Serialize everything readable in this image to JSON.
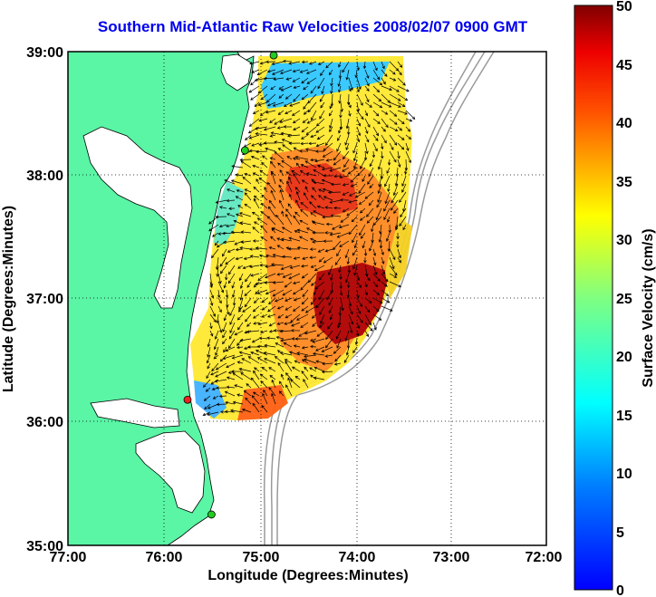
{
  "title": "Southern Mid-Atlantic Raw Velocities 2008/02/07 0900 GMT",
  "x_axis": {
    "label": "Longitude (Degrees:Minutes)",
    "ticks": [
      "77:00",
      "76:00",
      "75:00",
      "74:00",
      "73:00",
      "72:00"
    ]
  },
  "y_axis": {
    "label": "Latitude (Degrees:Minutes)",
    "ticks": [
      "39:00",
      "38:00",
      "37:00",
      "36:00",
      "35:00"
    ]
  },
  "colorbar": {
    "label": "Surface Velocity (cm/s)",
    "ticks": [
      "0",
      "5",
      "10",
      "15",
      "20",
      "25",
      "30",
      "35",
      "40",
      "45",
      "50"
    ],
    "min": 0,
    "max": 50,
    "colormap": "jet"
  },
  "map": {
    "lon_range": [
      -77,
      -72
    ],
    "lat_range": [
      35,
      39
    ],
    "land_color": "#5af5a5",
    "bathymetry_color": "#9a9a9a",
    "grid": "dotted",
    "stations": [
      {
        "lon": -74.85,
        "lat": 38.97,
        "color": "#22cc22"
      },
      {
        "lon": -75.15,
        "lat": 38.2,
        "color": "#22cc22"
      },
      {
        "lon": -75.75,
        "lat": 36.18,
        "color": "#ee2222"
      },
      {
        "lon": -75.5,
        "lat": 35.25,
        "color": "#22cc22"
      }
    ]
  }
}
